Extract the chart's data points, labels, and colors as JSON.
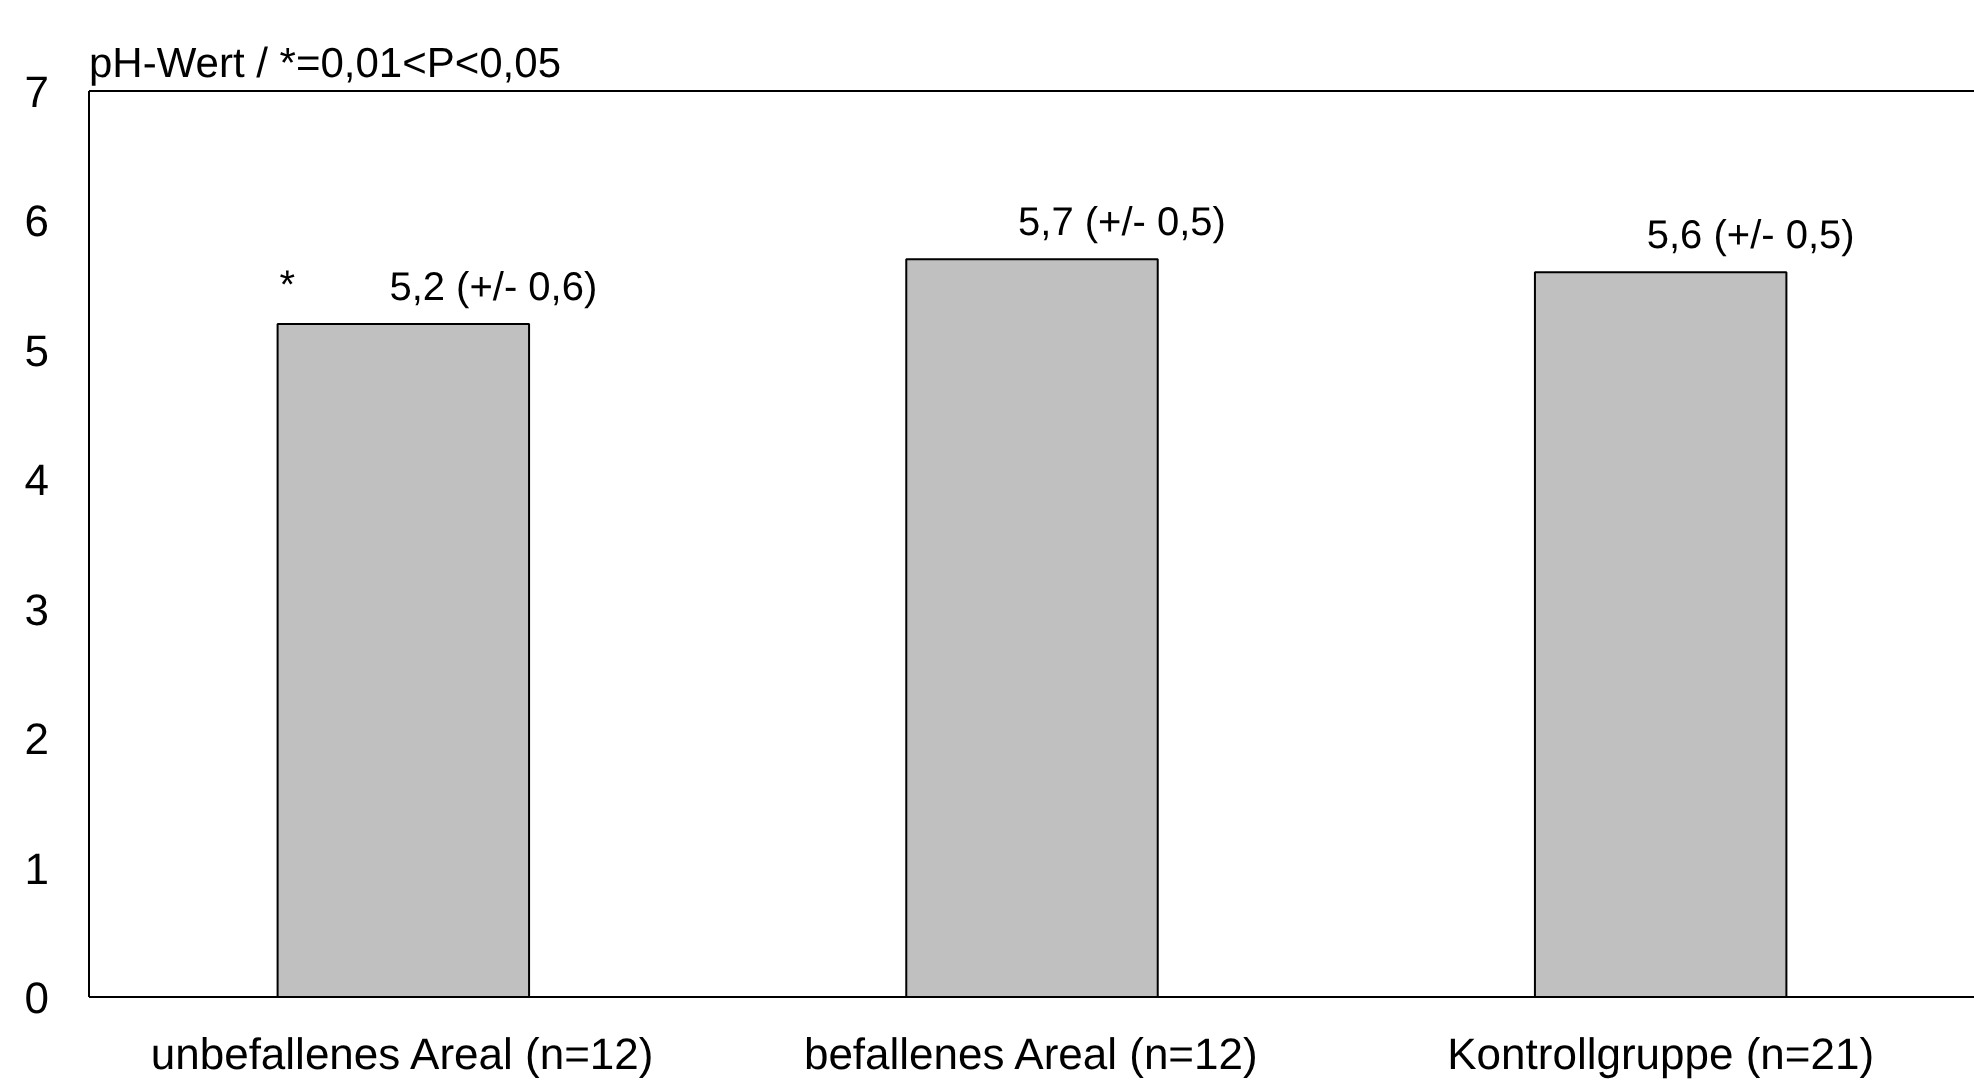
{
  "chart_data": {
    "type": "bar",
    "ylabel": "pH-Wert / *=0,01<P<0,05",
    "categories": [
      "unbefallenes Areal (n=12)",
      "befallenes Areal (n=12)",
      "Kontrollgruppe (n=21)"
    ],
    "values": [
      5.2,
      5.7,
      5.6
    ],
    "color": "#c0c0c0",
    "value_labels": [
      "5,2 (+/- 0,6)",
      "5,7 (+/- 0,5)",
      "5,6 (+/- 0,5)"
    ],
    "ylim": [
      0,
      7
    ],
    "yticks": [
      0,
      1,
      2,
      3,
      4,
      5,
      6,
      7
    ],
    "annotations": [
      "*"
    ]
  }
}
